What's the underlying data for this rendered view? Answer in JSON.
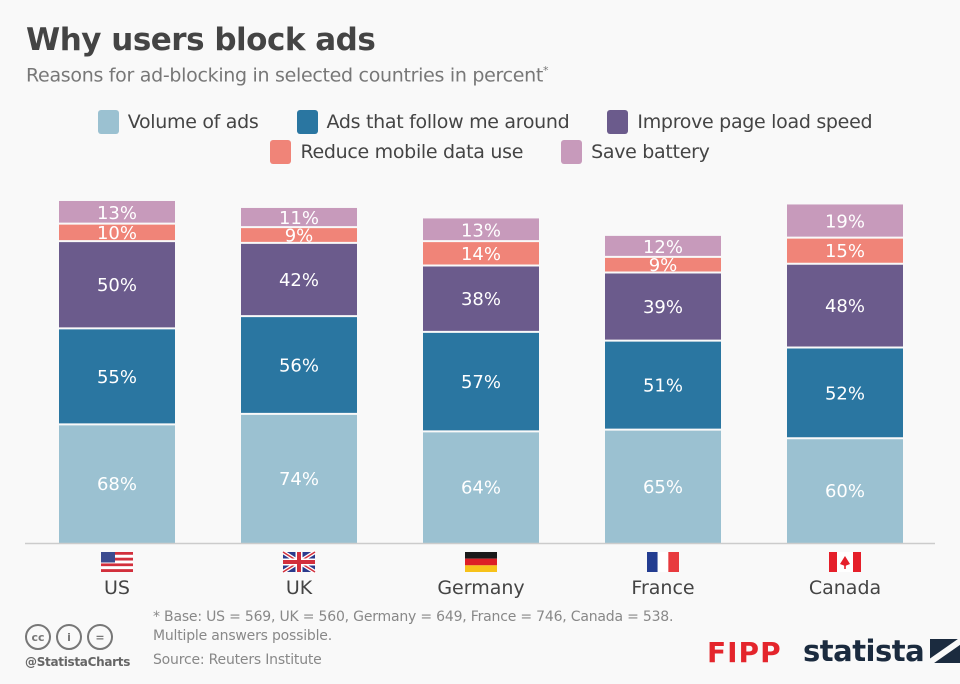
{
  "header": {
    "title": "Why users block ads",
    "subtitle": "Reasons for ad-blocking in selected countries in percent",
    "subtitle_mark": "*"
  },
  "legend": [
    {
      "label": "Volume of ads",
      "color": "#9bc1d1"
    },
    {
      "label": "Ads that follow me around",
      "color": "#2a76a1"
    },
    {
      "label": "Improve page load speed",
      "color": "#6b5b8c"
    },
    {
      "label": "Reduce mobile data use",
      "color": "#f08478"
    },
    {
      "label": "Save battery",
      "color": "#c79abb"
    }
  ],
  "chart_data": {
    "type": "bar",
    "stacked": true,
    "title": "Why users block ads",
    "subtitle": "Reasons for ad-blocking in selected countries in percent*",
    "xlabel": "",
    "ylabel": "",
    "categories": [
      "US",
      "UK",
      "Germany",
      "France",
      "Canada"
    ],
    "flags": [
      "us-flag-icon",
      "uk-flag-icon",
      "germany-flag-icon",
      "france-flag-icon",
      "canada-flag-icon"
    ],
    "series": [
      {
        "name": "Volume of ads",
        "color": "#9bc1d1",
        "values": [
          68,
          74,
          64,
          65,
          60
        ]
      },
      {
        "name": "Ads that follow me around",
        "color": "#2a76a1",
        "values": [
          55,
          56,
          57,
          51,
          52
        ]
      },
      {
        "name": "Improve page load speed",
        "color": "#6b5b8c",
        "values": [
          50,
          42,
          38,
          39,
          48
        ]
      },
      {
        "name": "Reduce mobile data use",
        "color": "#f08478",
        "values": [
          10,
          9,
          14,
          9,
          15
        ]
      },
      {
        "name": "Save battery",
        "color": "#c79abb",
        "values": [
          13,
          11,
          13,
          12,
          19
        ]
      }
    ],
    "value_suffix": "%",
    "grid": false,
    "legend_position": "top",
    "ylim": [
      0,
      200
    ]
  },
  "footer": {
    "footnote_line1": "* Base: US = 569, UK = 560, Germany = 649, France = 746, Canada = 538.",
    "footnote_line2": "Multiple answers possible.",
    "source": "Source: Reuters Institute",
    "handle": "@StatistaCharts",
    "cc_icons": [
      "cc",
      "i",
      "="
    ],
    "partner_logo": "FIPP",
    "brand_logo": "statista"
  }
}
